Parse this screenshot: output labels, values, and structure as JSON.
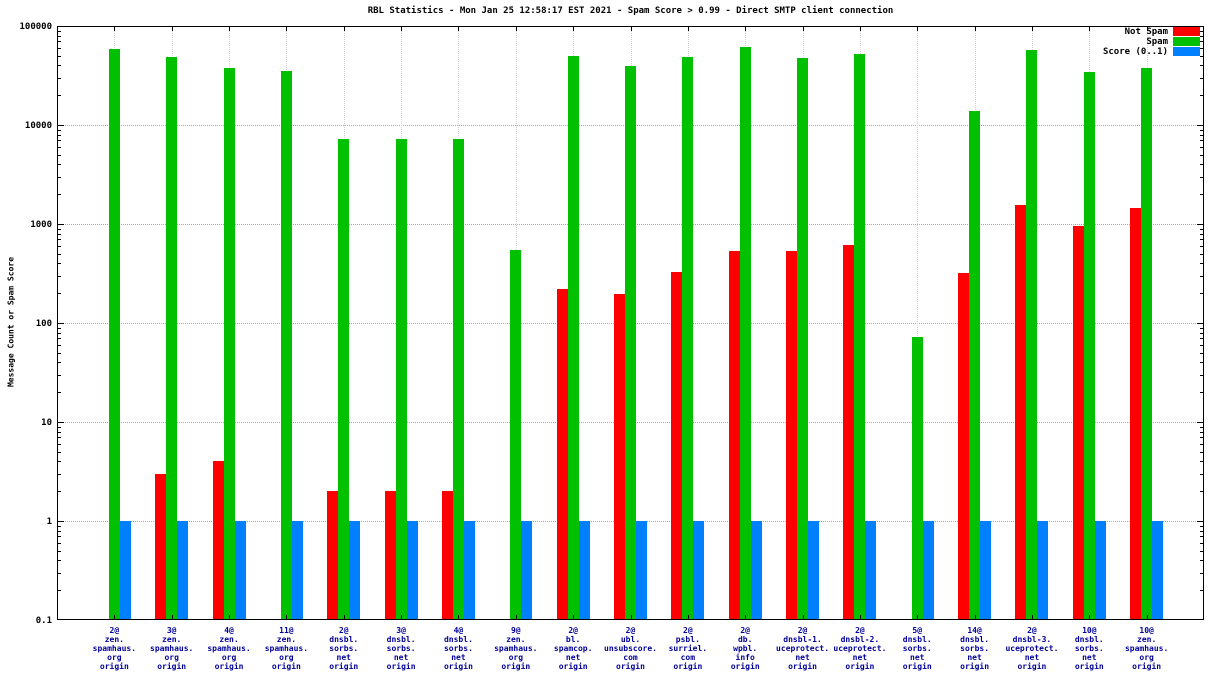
{
  "chart_data": {
    "type": "bar",
    "title": "RBL Statistics - Mon Jan 25 12:58:17 EST 2021 - Spam Score > 0.99 - Direct SMTP client connection",
    "ylabel": "Message Count or Spam Score",
    "xlabel": "",
    "y_scale": "log",
    "ylim": [
      0.1,
      100000
    ],
    "y_ticks": [
      100000,
      10000,
      1000,
      100,
      10,
      1,
      0.1
    ],
    "grid": true,
    "legend_position": "top-right",
    "categories": [
      "2@\nzen.\nspamhaus.\norg\norigin",
      "3@\nzen.\nspamhaus.\norg\norigin",
      "4@\nzen.\nspamhaus.\norg\norigin",
      "11@\nzen.\nspamhaus.\norg\norigin",
      "2@\ndnsbl.\nsorbs.\nnet\norigin",
      "3@\ndnsbl.\nsorbs.\nnet\norigin",
      "4@\ndnsbl.\nsorbs.\nnet\norigin",
      "9@\nzen.\nspamhaus.\norg\norigin",
      "2@\nbl.\nspamcop.\nnet\norigin",
      "2@\nubl.\nunsubscore.\ncom\norigin",
      "2@\npsbl.\nsurriel.\ncom\norigin",
      "2@\ndb.\nwpbl.\ninfo\norigin",
      "2@\ndnsbl-1.\nuceprotect.\nnet\norigin",
      "2@\ndnsbl-2.\nuceprotect.\nnet\norigin",
      "5@\ndnsbl.\nsorbs.\nnet\norigin",
      "14@\ndnsbl.\nsorbs.\nnet\norigin",
      "2@\ndnsbl-3.\nuceprotect.\nnet\norigin",
      "10@\ndnsbl.\nsorbs.\nnet\norigin",
      "10@\nzen.\nspamhaus.\norg\norigin"
    ],
    "series": [
      {
        "name": "Not Spam",
        "color": "#ff0000",
        "values": [
          0,
          3,
          4,
          0,
          2,
          2,
          2,
          0,
          220,
          195,
          330,
          530,
          530,
          610,
          0,
          320,
          1550,
          950,
          1450
        ]
      },
      {
        "name": "Spam",
        "color": "#00c000",
        "values": [
          58000,
          49000,
          38000,
          35000,
          7200,
          7200,
          7200,
          550,
          50000,
          39000,
          49000,
          62000,
          48000,
          52000,
          72,
          14000,
          57000,
          34000,
          38000
        ]
      },
      {
        "name": "Score (0..1)",
        "color": "#0080ff",
        "values": [
          1,
          1,
          1,
          1,
          1,
          1,
          1,
          1,
          1,
          1,
          1,
          1,
          1,
          1,
          1,
          1,
          1,
          1,
          1
        ]
      }
    ]
  }
}
